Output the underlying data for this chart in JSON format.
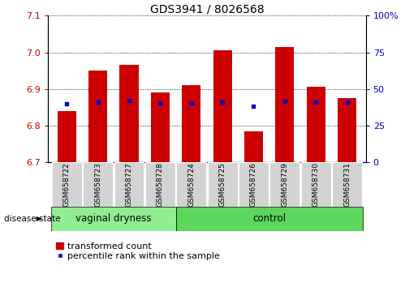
{
  "title": "GDS3941 / 8026568",
  "samples": [
    "GSM658722",
    "GSM658723",
    "GSM658727",
    "GSM658728",
    "GSM658724",
    "GSM658725",
    "GSM658726",
    "GSM658729",
    "GSM658730",
    "GSM658731"
  ],
  "groups": [
    "vaginal dryness",
    "vaginal dryness",
    "vaginal dryness",
    "vaginal dryness",
    "control",
    "control",
    "control",
    "control",
    "control",
    "control"
  ],
  "red_values": [
    6.84,
    6.95,
    6.965,
    6.89,
    6.91,
    7.005,
    6.785,
    7.015,
    6.905,
    6.875
  ],
  "blue_values": [
    6.86,
    6.865,
    6.868,
    6.862,
    6.862,
    6.864,
    6.852,
    6.866,
    6.864,
    6.864
  ],
  "ymin": 6.7,
  "ymax": 7.1,
  "y_left_ticks": [
    6.7,
    6.8,
    6.9,
    7.0,
    7.1
  ],
  "y_right_ticks_pct": [
    0,
    25,
    50,
    75,
    100
  ],
  "y_right_tick_labels": [
    "0",
    "25",
    "50",
    "75",
    "100%"
  ],
  "bar_color": "#CC0000",
  "dot_color": "#0000CC",
  "group_label": "disease state",
  "vd_color": "#90EE90",
  "ctrl_color": "#5CD65C",
  "legend_bar_label": "transformed count",
  "legend_dot_label": "percentile rank within the sample",
  "n_vd": 4,
  "n_ctrl": 6
}
